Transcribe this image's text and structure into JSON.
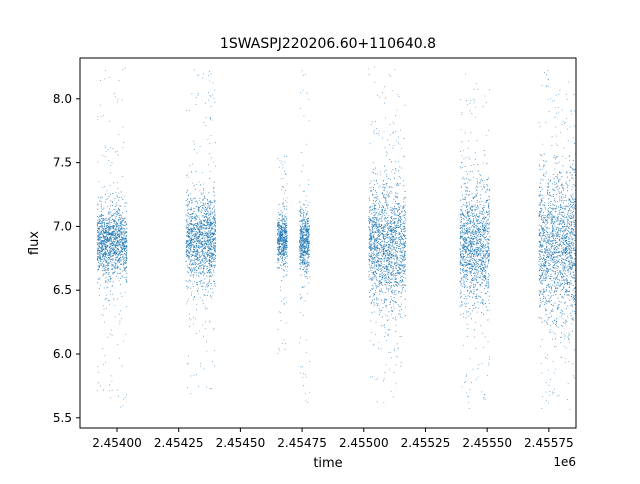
{
  "figure": {
    "title": "1SWASPJ220206.60+110640.8",
    "xlabel": "time",
    "ylabel": "flux",
    "x_offset_label": "1e6"
  },
  "colors": {
    "points": "#1f77b4",
    "axes": "#000000",
    "background": "#ffffff"
  },
  "chart_data": {
    "type": "scatter",
    "title": "1SWASPJ220206.60+110640.8",
    "xlabel": "time",
    "ylabel": "flux",
    "x_scale_multiplier": "1e6",
    "xlim": [
      2.45385,
      2.45586
    ],
    "ylim": [
      5.42,
      8.32
    ],
    "grid": false,
    "legend": "none",
    "x_ticks": [
      2.454,
      2.45425,
      2.4545,
      2.45475,
      2.455,
      2.45525,
      2.4555,
      2.45575
    ],
    "x_tick_labels": [
      "2.45400",
      "2.45425",
      "2.45450",
      "2.45475",
      "2.45500",
      "2.45525",
      "2.45550",
      "2.45575"
    ],
    "y_ticks": [
      5.5,
      6.0,
      6.5,
      7.0,
      7.5,
      8.0
    ],
    "y_tick_labels": [
      "5.5",
      "6.0",
      "6.5",
      "7.0",
      "7.5",
      "8.0"
    ],
    "series": [
      {
        "marker_size": "very small",
        "seasons": [
          {
            "x_start": 2.45392,
            "x_end": 2.45404,
            "median": 6.88,
            "core_low": 6.6,
            "core_high": 7.15,
            "min": 5.55,
            "max": 8.27
          },
          {
            "x_start": 2.45428,
            "x_end": 2.4544,
            "median": 6.9,
            "core_low": 6.55,
            "core_high": 7.2,
            "min": 5.65,
            "max": 8.25
          },
          {
            "x_start": 2.45465,
            "x_end": 2.45469,
            "median": 6.9,
            "core_low": 6.7,
            "core_high": 7.1,
            "min": 5.85,
            "max": 7.6
          },
          {
            "x_start": 2.45474,
            "x_end": 2.45478,
            "median": 6.88,
            "core_low": 6.65,
            "core_high": 7.1,
            "min": 5.55,
            "max": 8.25
          },
          {
            "x_start": 2.45502,
            "x_end": 2.45517,
            "median": 6.85,
            "core_low": 6.4,
            "core_high": 7.3,
            "min": 5.55,
            "max": 8.25
          },
          {
            "x_start": 2.45539,
            "x_end": 2.45551,
            "median": 6.85,
            "core_low": 6.4,
            "core_high": 7.3,
            "min": 5.55,
            "max": 8.2
          },
          {
            "x_start": 2.45571,
            "x_end": 2.45586,
            "median": 6.85,
            "core_low": 6.3,
            "core_high": 7.4,
            "min": 5.55,
            "max": 8.25
          }
        ]
      }
    ]
  }
}
